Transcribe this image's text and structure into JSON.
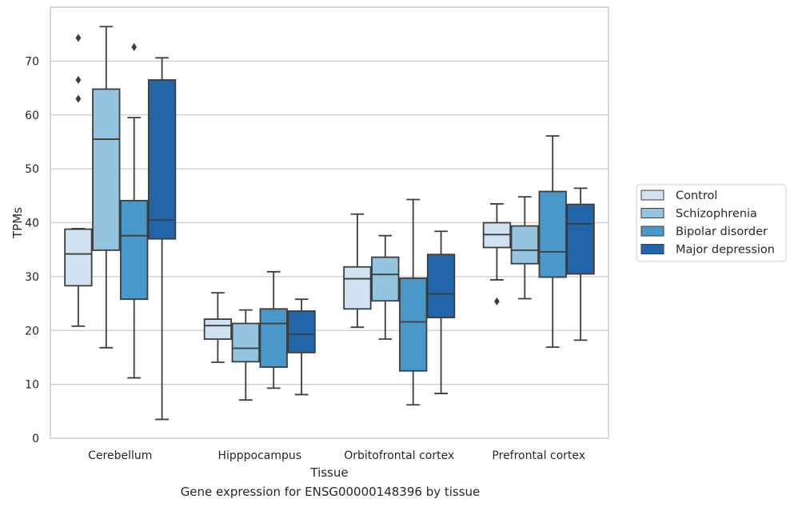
{
  "caption": "Gene expression for ENSG00000148396 by tissue",
  "colors": {
    "grid": "#cccccc",
    "frame": "#cccccc",
    "box_edge": "#3d3d3d",
    "series": [
      "#d0e1f2",
      "#94c4df",
      "#4a98c9",
      "#2365a9"
    ]
  },
  "chart_data": {
    "type": "box",
    "xlabel": "Tissue",
    "ylabel": "TPMs",
    "ylim": [
      0,
      80
    ],
    "yticks": [
      0,
      10,
      20,
      30,
      40,
      50,
      60,
      70
    ],
    "grid": "horizontal",
    "legend_position": "right-outside",
    "categories": [
      "Cerebellum",
      "Hipppocampus",
      "Orbitofrontal cortex",
      "Prefrontal cortex"
    ],
    "series": [
      {
        "name": "Control",
        "boxes": [
          {
            "min": 20.8,
            "q1": 28.3,
            "median": 34.2,
            "q3": 38.8,
            "max": 38.9,
            "outliers": [
              63.0,
              66.5,
              74.3
            ]
          },
          {
            "min": 14.1,
            "q1": 18.4,
            "median": 20.9,
            "q3": 22.1,
            "max": 27.0,
            "outliers": []
          },
          {
            "min": 20.6,
            "q1": 24.0,
            "median": 29.6,
            "q3": 31.8,
            "max": 41.6,
            "outliers": []
          },
          {
            "min": 29.4,
            "q1": 35.4,
            "median": 37.8,
            "q3": 40.0,
            "max": 43.5,
            "outliers": [
              25.4
            ]
          }
        ]
      },
      {
        "name": "Schizophrenia",
        "boxes": [
          {
            "min": 16.8,
            "q1": 34.9,
            "median": 55.5,
            "q3": 64.8,
            "max": 76.4,
            "outliers": []
          },
          {
            "min": 7.1,
            "q1": 14.2,
            "median": 16.7,
            "q3": 21.3,
            "max": 23.8,
            "outliers": []
          },
          {
            "min": 18.4,
            "q1": 25.5,
            "median": 30.4,
            "q3": 33.6,
            "max": 37.6,
            "outliers": []
          },
          {
            "min": 25.9,
            "q1": 32.4,
            "median": 34.9,
            "q3": 39.4,
            "max": 44.8,
            "outliers": []
          }
        ]
      },
      {
        "name": "Bipolar disorder",
        "boxes": [
          {
            "min": 11.2,
            "q1": 25.8,
            "median": 37.6,
            "q3": 44.1,
            "max": 59.5,
            "outliers": [
              72.6
            ]
          },
          {
            "min": 9.3,
            "q1": 13.2,
            "median": 21.3,
            "q3": 24.0,
            "max": 30.9,
            "outliers": []
          },
          {
            "min": 6.2,
            "q1": 12.5,
            "median": 21.6,
            "q3": 29.7,
            "max": 44.3,
            "outliers": []
          },
          {
            "min": 16.9,
            "q1": 29.9,
            "median": 34.6,
            "q3": 45.8,
            "max": 56.1,
            "outliers": []
          }
        ]
      },
      {
        "name": "Major depression",
        "boxes": [
          {
            "min": 3.5,
            "q1": 37.0,
            "median": 40.5,
            "q3": 66.5,
            "max": 70.6,
            "outliers": []
          },
          {
            "min": 8.1,
            "q1": 15.9,
            "median": 19.3,
            "q3": 23.6,
            "max": 25.8,
            "outliers": []
          },
          {
            "min": 8.3,
            "q1": 22.4,
            "median": 26.8,
            "q3": 34.1,
            "max": 38.4,
            "outliers": []
          },
          {
            "min": 18.2,
            "q1": 30.5,
            "median": 39.8,
            "q3": 43.4,
            "max": 46.4,
            "outliers": []
          }
        ]
      }
    ]
  }
}
